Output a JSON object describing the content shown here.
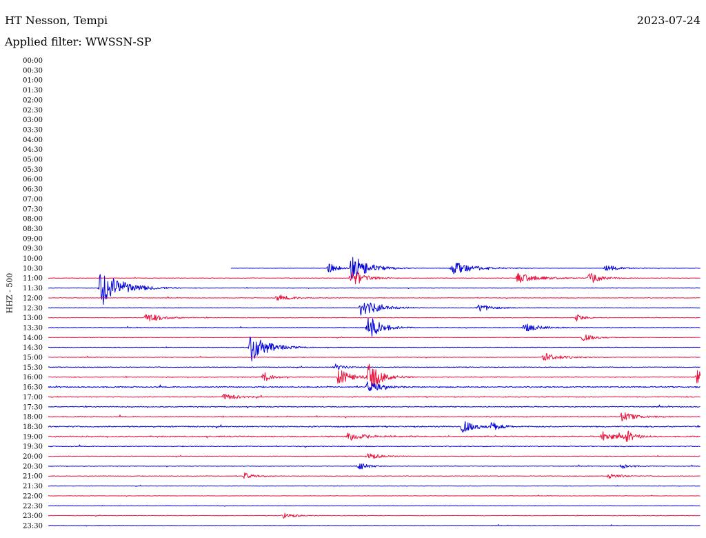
{
  "header": {
    "title": "HT Nesson, Tempi",
    "date": "2023-07-24",
    "filter": "Applied filter: WWSSN-SP"
  },
  "chart_data": {
    "type": "line",
    "title": "HT Nesson, Tempi",
    "ylabel": "HHZ - 500",
    "colors": {
      "even_rows": "#e8123c",
      "odd_rows": "#0000d8"
    },
    "row_labels": [
      "00:00",
      "00:30",
      "01:00",
      "01:30",
      "02:00",
      "02:30",
      "03:00",
      "03:30",
      "04:00",
      "04:30",
      "05:00",
      "05:30",
      "06:00",
      "06:30",
      "07:00",
      "07:30",
      "08:00",
      "08:30",
      "09:00",
      "09:30",
      "10:00",
      "10:30",
      "11:00",
      "11:30",
      "12:00",
      "12:30",
      "13:00",
      "13:30",
      "14:00",
      "14:30",
      "15:00",
      "15:30",
      "16:00",
      "16:30",
      "17:00",
      "17:30",
      "18:00",
      "18:30",
      "19:00",
      "19:30",
      "20:00",
      "20:30",
      "21:00",
      "21:30",
      "22:00",
      "22:30",
      "23:00",
      "23:30"
    ],
    "record_start": {
      "row": "10:30",
      "fraction": 0.28
    },
    "noise_level": {
      "10:30": 0.25,
      "11:00": 0.3,
      "11:30": 0.35,
      "12:00": 0.35,
      "12:30": 0.35,
      "13:00": 0.35,
      "13:30": 0.35,
      "14:00": 0.3,
      "14:30": 0.35,
      "15:00": 0.35,
      "15:30": 0.45,
      "16:00": 0.5,
      "16:30": 0.7,
      "17:00": 0.6,
      "17:30": 0.55,
      "18:00": 0.6,
      "18:30": 0.75,
      "19:00": 0.7,
      "19:30": 0.5,
      "20:00": 0.4,
      "20:30": 0.35,
      "21:00": 0.35,
      "21:30": 0.3,
      "22:00": 0.25,
      "22:30": 0.3,
      "23:00": 0.3,
      "23:30": 0.3
    },
    "events": [
      {
        "row": "10:30",
        "fraction": 0.43,
        "amplitude": 8,
        "duration": 0.02
      },
      {
        "row": "10:30",
        "fraction": 0.465,
        "amplitude": 20,
        "duration": 0.04
      },
      {
        "row": "10:30",
        "fraction": 0.62,
        "amplitude": 10,
        "duration": 0.05
      },
      {
        "row": "10:30",
        "fraction": 0.855,
        "amplitude": 5,
        "duration": 0.03
      },
      {
        "row": "11:00",
        "fraction": 0.465,
        "amplitude": 14,
        "duration": 0.03
      },
      {
        "row": "11:00",
        "fraction": 0.72,
        "amplitude": 7,
        "duration": 0.05
      },
      {
        "row": "11:00",
        "fraction": 0.83,
        "amplitude": 8,
        "duration": 0.03
      },
      {
        "row": "11:30",
        "fraction": 0.08,
        "amplitude": 28,
        "duration": 0.05
      },
      {
        "row": "12:00",
        "fraction": 0.35,
        "amplitude": 4,
        "duration": 0.04
      },
      {
        "row": "12:30",
        "fraction": 0.48,
        "amplitude": 13,
        "duration": 0.04
      },
      {
        "row": "12:30",
        "fraction": 0.66,
        "amplitude": 6,
        "duration": 0.03
      },
      {
        "row": "13:00",
        "fraction": 0.15,
        "amplitude": 7,
        "duration": 0.04
      },
      {
        "row": "13:00",
        "fraction": 0.81,
        "amplitude": 5,
        "duration": 0.02
      },
      {
        "row": "13:30",
        "fraction": 0.49,
        "amplitude": 20,
        "duration": 0.03
      },
      {
        "row": "13:30",
        "fraction": 0.73,
        "amplitude": 6,
        "duration": 0.04
      },
      {
        "row": "14:00",
        "fraction": 0.82,
        "amplitude": 5,
        "duration": 0.03
      },
      {
        "row": "14:30",
        "fraction": 0.31,
        "amplitude": 22,
        "duration": 0.04
      },
      {
        "row": "15:00",
        "fraction": 0.76,
        "amplitude": 6,
        "duration": 0.04
      },
      {
        "row": "15:30",
        "fraction": 0.44,
        "amplitude": 5,
        "duration": 0.02
      },
      {
        "row": "16:00",
        "fraction": 0.33,
        "amplitude": 8,
        "duration": 0.02
      },
      {
        "row": "16:00",
        "fraction": 0.445,
        "amplitude": 12,
        "duration": 0.03
      },
      {
        "row": "16:00",
        "fraction": 0.49,
        "amplitude": 22,
        "duration": 0.03
      },
      {
        "row": "16:00",
        "fraction": 0.995,
        "amplitude": 10,
        "duration": 0.01
      },
      {
        "row": "16:30",
        "fraction": 0.49,
        "amplitude": 8,
        "duration": 0.03
      },
      {
        "row": "17:00",
        "fraction": 0.27,
        "amplitude": 5,
        "duration": 0.03
      },
      {
        "row": "18:00",
        "fraction": 0.88,
        "amplitude": 7,
        "duration": 0.03
      },
      {
        "row": "18:30",
        "fraction": 0.635,
        "amplitude": 9,
        "duration": 0.03
      },
      {
        "row": "18:30",
        "fraction": 0.68,
        "amplitude": 6,
        "duration": 0.02
      },
      {
        "row": "19:00",
        "fraction": 0.46,
        "amplitude": 6,
        "duration": 0.04
      },
      {
        "row": "19:00",
        "fraction": 0.85,
        "amplitude": 7,
        "duration": 0.03
      },
      {
        "row": "19:00",
        "fraction": 0.885,
        "amplitude": 8,
        "duration": 0.02
      },
      {
        "row": "20:00",
        "fraction": 0.49,
        "amplitude": 5,
        "duration": 0.03
      },
      {
        "row": "20:30",
        "fraction": 0.475,
        "amplitude": 7,
        "duration": 0.02
      },
      {
        "row": "20:30",
        "fraction": 0.88,
        "amplitude": 4,
        "duration": 0.02
      },
      {
        "row": "21:00",
        "fraction": 0.3,
        "amplitude": 5,
        "duration": 0.02
      },
      {
        "row": "21:00",
        "fraction": 0.86,
        "amplitude": 4,
        "duration": 0.03
      },
      {
        "row": "23:00",
        "fraction": 0.36,
        "amplitude": 4,
        "duration": 0.03
      }
    ]
  }
}
